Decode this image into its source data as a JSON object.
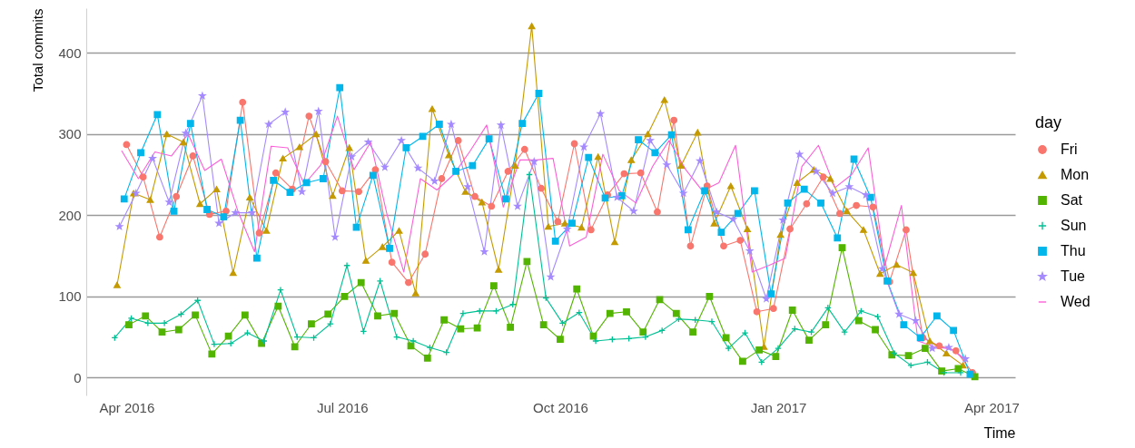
{
  "chart_data": {
    "type": "line",
    "xlabel": "Time",
    "ylabel": "Total commits",
    "legend_title": "day",
    "legend": "right",
    "grid": "y",
    "line_style": "solid",
    "xlim": [
      "2016-03-15",
      "2017-04-11"
    ],
    "ylim": [
      -22,
      455
    ],
    "xticks": [
      {
        "value": "2016-04-01",
        "label": "Apr 2016"
      },
      {
        "value": "2016-07-01",
        "label": "Jul 2016"
      },
      {
        "value": "2016-10-01",
        "label": "Oct 2016"
      },
      {
        "value": "2017-01-01",
        "label": "Jan 2017"
      },
      {
        "value": "2017-04-01",
        "label": "Apr 2017"
      }
    ],
    "yticks": [
      0,
      100,
      200,
      300,
      400
    ],
    "series": [
      {
        "name": "Fri",
        "color": "#f8766d",
        "marker": "circle",
        "x": [
          "2016-04-01",
          "2016-04-08",
          "2016-04-15",
          "2016-04-22",
          "2016-04-29",
          "2016-05-06",
          "2016-05-13",
          "2016-05-20",
          "2016-05-27",
          "2016-06-03",
          "2016-06-10",
          "2016-06-17",
          "2016-06-24",
          "2016-07-01",
          "2016-07-08",
          "2016-07-15",
          "2016-07-22",
          "2016-07-29",
          "2016-08-05",
          "2016-08-12",
          "2016-08-19",
          "2016-08-26",
          "2016-09-02",
          "2016-09-09",
          "2016-09-16",
          "2016-09-23",
          "2016-09-30",
          "2016-10-07",
          "2016-10-14",
          "2016-10-21",
          "2016-10-28",
          "2016-11-04",
          "2016-11-11",
          "2016-11-18",
          "2016-11-25",
          "2016-12-02",
          "2016-12-09",
          "2016-12-16",
          "2016-12-23",
          "2016-12-30",
          "2017-01-06",
          "2017-01-13",
          "2017-01-20",
          "2017-01-27",
          "2017-02-03",
          "2017-02-10",
          "2017-02-17",
          "2017-02-24",
          "2017-03-03",
          "2017-03-10",
          "2017-03-17",
          "2017-03-24"
        ],
        "values": [
          287,
          247,
          173,
          223,
          273,
          201,
          205,
          339,
          178,
          252,
          232,
          322,
          266,
          230,
          229,
          256,
          142,
          117,
          152,
          245,
          292,
          223,
          211,
          254,
          281,
          233,
          192,
          288,
          182,
          225,
          251,
          252,
          204,
          317,
          162,
          236,
          162,
          169,
          81,
          85,
          183,
          214,
          247,
          202,
          212,
          210,
          118,
          182,
          49,
          39,
          33,
          6
        ]
      },
      {
        "name": "Mon",
        "color": "#c49a00",
        "marker": "triangle",
        "x": [
          "2016-03-28",
          "2016-04-04",
          "2016-04-11",
          "2016-04-18",
          "2016-04-25",
          "2016-05-02",
          "2016-05-09",
          "2016-05-16",
          "2016-05-23",
          "2016-05-30",
          "2016-06-06",
          "2016-06-13",
          "2016-06-20",
          "2016-06-27",
          "2016-07-04",
          "2016-07-11",
          "2016-07-18",
          "2016-07-25",
          "2016-08-01",
          "2016-08-08",
          "2016-08-15",
          "2016-08-22",
          "2016-08-29",
          "2016-09-05",
          "2016-09-12",
          "2016-09-19",
          "2016-09-26",
          "2016-10-03",
          "2016-10-10",
          "2016-10-17",
          "2016-10-24",
          "2016-10-31",
          "2016-11-07",
          "2016-11-14",
          "2016-11-21",
          "2016-11-28",
          "2016-12-05",
          "2016-12-12",
          "2016-12-19",
          "2016-12-26",
          "2017-01-02",
          "2017-01-09",
          "2017-01-16",
          "2017-01-23",
          "2017-01-30",
          "2017-02-06",
          "2017-02-13",
          "2017-02-20",
          "2017-02-27",
          "2017-03-06",
          "2017-03-13",
          "2017-03-20"
        ],
        "values": [
          114,
          227,
          219,
          300,
          290,
          214,
          232,
          129,
          222,
          181,
          270,
          284,
          300,
          224,
          283,
          144,
          161,
          181,
          104,
          331,
          274,
          229,
          216,
          133,
          261,
          433,
          186,
          190,
          185,
          272,
          167,
          268,
          300,
          342,
          261,
          302,
          190,
          236,
          183,
          38,
          176,
          240,
          256,
          245,
          205,
          182,
          128,
          139,
          129,
          45,
          30,
          15
        ]
      },
      {
        "name": "Sat",
        "color": "#53b400",
        "marker": "square",
        "x": [
          "2016-04-02",
          "2016-04-09",
          "2016-04-16",
          "2016-04-23",
          "2016-04-30",
          "2016-05-07",
          "2016-05-14",
          "2016-05-21",
          "2016-05-28",
          "2016-06-04",
          "2016-06-11",
          "2016-06-18",
          "2016-06-25",
          "2016-07-02",
          "2016-07-09",
          "2016-07-16",
          "2016-07-23",
          "2016-07-30",
          "2016-08-06",
          "2016-08-13",
          "2016-08-20",
          "2016-08-27",
          "2016-09-03",
          "2016-09-10",
          "2016-09-17",
          "2016-09-24",
          "2016-10-01",
          "2016-10-08",
          "2016-10-15",
          "2016-10-22",
          "2016-10-29",
          "2016-11-05",
          "2016-11-12",
          "2016-11-19",
          "2016-11-26",
          "2016-12-03",
          "2016-12-10",
          "2016-12-17",
          "2016-12-24",
          "2016-12-31",
          "2017-01-07",
          "2017-01-14",
          "2017-01-21",
          "2017-01-28",
          "2017-02-04",
          "2017-02-11",
          "2017-02-18",
          "2017-02-25",
          "2017-03-04",
          "2017-03-11",
          "2017-03-18",
          "2017-03-25"
        ],
        "values": [
          65,
          76,
          56,
          59,
          77,
          29,
          51,
          77,
          42,
          88,
          38,
          66,
          78,
          100,
          117,
          76,
          79,
          39,
          24,
          71,
          60,
          61,
          113,
          62,
          143,
          65,
          47,
          109,
          51,
          79,
          81,
          56,
          96,
          79,
          56,
          100,
          49,
          20,
          34,
          26,
          83,
          46,
          65,
          160,
          70,
          59,
          28,
          27,
          36,
          8,
          11,
          1
        ]
      },
      {
        "name": "Sun",
        "color": "#00c094",
        "marker": "cross",
        "x": [
          "2016-03-27",
          "2016-04-03",
          "2016-04-10",
          "2016-04-17",
          "2016-04-24",
          "2016-05-01",
          "2016-05-08",
          "2016-05-15",
          "2016-05-22",
          "2016-05-29",
          "2016-06-05",
          "2016-06-12",
          "2016-06-19",
          "2016-06-26",
          "2016-07-03",
          "2016-07-10",
          "2016-07-17",
          "2016-07-24",
          "2016-07-31",
          "2016-08-07",
          "2016-08-14",
          "2016-08-21",
          "2016-08-28",
          "2016-09-04",
          "2016-09-11",
          "2016-09-18",
          "2016-09-25",
          "2016-10-02",
          "2016-10-09",
          "2016-10-16",
          "2016-10-23",
          "2016-10-30",
          "2016-11-06",
          "2016-11-13",
          "2016-11-20",
          "2016-11-27",
          "2016-12-04",
          "2016-12-11",
          "2016-12-18",
          "2016-12-25",
          "2017-01-01",
          "2017-01-08",
          "2017-01-15",
          "2017-01-22",
          "2017-01-29",
          "2017-02-05",
          "2017-02-12",
          "2017-02-19",
          "2017-02-26",
          "2017-03-05",
          "2017-03-12",
          "2017-03-19"
        ],
        "values": [
          49,
          73,
          67,
          67,
          78,
          95,
          41,
          42,
          55,
          45,
          108,
          50,
          49,
          66,
          138,
          57,
          119,
          50,
          45,
          37,
          31,
          79,
          82,
          82,
          90,
          250,
          98,
          67,
          80,
          45,
          47,
          48,
          50,
          58,
          72,
          71,
          69,
          36,
          55,
          19,
          36,
          60,
          56,
          86,
          56,
          82,
          75,
          30,
          15,
          19,
          6,
          6
        ]
      },
      {
        "name": "Thu",
        "color": "#00b6eb",
        "marker": "square",
        "x": [
          "2016-03-31",
          "2016-04-07",
          "2016-04-14",
          "2016-04-21",
          "2016-04-28",
          "2016-05-05",
          "2016-05-12",
          "2016-05-19",
          "2016-05-26",
          "2016-06-02",
          "2016-06-09",
          "2016-06-16",
          "2016-06-23",
          "2016-06-30",
          "2016-07-07",
          "2016-07-14",
          "2016-07-21",
          "2016-07-28",
          "2016-08-04",
          "2016-08-11",
          "2016-08-18",
          "2016-08-25",
          "2016-09-01",
          "2016-09-08",
          "2016-09-15",
          "2016-09-22",
          "2016-09-29",
          "2016-10-06",
          "2016-10-13",
          "2016-10-20",
          "2016-10-27",
          "2016-11-03",
          "2016-11-10",
          "2016-11-17",
          "2016-11-24",
          "2016-12-01",
          "2016-12-08",
          "2016-12-15",
          "2016-12-22",
          "2016-12-29",
          "2017-01-05",
          "2017-01-12",
          "2017-01-19",
          "2017-01-26",
          "2017-02-02",
          "2017-02-09",
          "2017-02-16",
          "2017-02-23",
          "2017-03-02",
          "2017-03-09",
          "2017-03-16",
          "2017-03-23"
        ],
        "values": [
          220,
          277,
          324,
          205,
          313,
          207,
          198,
          317,
          147,
          243,
          228,
          240,
          245,
          357,
          185,
          249,
          159,
          283,
          297,
          312,
          254,
          261,
          294,
          220,
          313,
          350,
          168,
          190,
          271,
          221,
          224,
          293,
          277,
          299,
          182,
          230,
          179,
          202,
          230,
          103,
          215,
          232,
          215,
          172,
          269,
          222,
          119,
          65,
          49,
          76,
          58,
          4
        ]
      },
      {
        "name": "Tue",
        "color": "#a58aff",
        "marker": "star",
        "x": [
          "2016-03-29",
          "2016-04-05",
          "2016-04-12",
          "2016-04-19",
          "2016-04-26",
          "2016-05-03",
          "2016-05-10",
          "2016-05-17",
          "2016-05-24",
          "2016-05-31",
          "2016-06-07",
          "2016-06-14",
          "2016-06-21",
          "2016-06-28",
          "2016-07-05",
          "2016-07-12",
          "2016-07-19",
          "2016-07-26",
          "2016-08-02",
          "2016-08-09",
          "2016-08-16",
          "2016-08-23",
          "2016-08-30",
          "2016-09-06",
          "2016-09-13",
          "2016-09-20",
          "2016-09-27",
          "2016-10-04",
          "2016-10-11",
          "2016-10-18",
          "2016-10-25",
          "2016-11-01",
          "2016-11-08",
          "2016-11-15",
          "2016-11-22",
          "2016-11-29",
          "2016-12-06",
          "2016-12-13",
          "2016-12-20",
          "2016-12-27",
          "2017-01-03",
          "2017-01-10",
          "2017-01-17",
          "2017-01-24",
          "2017-01-31",
          "2017-02-07",
          "2017-02-14",
          "2017-02-21",
          "2017-02-28",
          "2017-03-07",
          "2017-03-14",
          "2017-03-21"
        ],
        "values": [
          186,
          227,
          270,
          216,
          301,
          347,
          190,
          203,
          203,
          312,
          327,
          229,
          328,
          173,
          272,
          290,
          259,
          292,
          258,
          242,
          312,
          235,
          155,
          311,
          211,
          266,
          124,
          183,
          284,
          325,
          222,
          205,
          292,
          262,
          227,
          267,
          204,
          195,
          156,
          97,
          194,
          275,
          254,
          227,
          235,
          225,
          134,
          78,
          70,
          36,
          37,
          23
        ]
      },
      {
        "name": "Wed",
        "color": "#fb61d7",
        "marker": "none",
        "x": [
          "2016-03-30",
          "2016-04-06",
          "2016-04-13",
          "2016-04-20",
          "2016-04-27",
          "2016-05-04",
          "2016-05-11",
          "2016-05-18",
          "2016-05-25",
          "2016-06-01",
          "2016-06-08",
          "2016-06-15",
          "2016-06-22",
          "2016-06-29",
          "2016-07-06",
          "2016-07-13",
          "2016-07-20",
          "2016-07-27",
          "2016-08-03",
          "2016-08-10",
          "2016-08-17",
          "2016-08-24",
          "2016-08-31",
          "2016-09-07",
          "2016-09-14",
          "2016-09-21",
          "2016-09-28",
          "2016-10-05",
          "2016-10-12",
          "2016-10-19",
          "2016-10-26",
          "2016-11-02",
          "2016-11-09",
          "2016-11-16",
          "2016-11-23",
          "2016-11-30",
          "2016-12-07",
          "2016-12-14",
          "2016-12-21",
          "2016-12-28",
          "2017-01-04",
          "2017-01-11",
          "2017-01-18",
          "2017-01-25",
          "2017-02-01",
          "2017-02-08",
          "2017-02-15",
          "2017-02-22",
          "2017-03-01",
          "2017-03-08",
          "2017-03-15",
          "2017-03-22"
        ],
        "values": [
          279,
          245,
          278,
          273,
          300,
          255,
          269,
          205,
          155,
          285,
          283,
          238,
          262,
          322,
          256,
          290,
          200,
          130,
          245,
          231,
          250,
          279,
          311,
          210,
          268,
          268,
          270,
          162,
          173,
          275,
          230,
          215,
          260,
          292,
          256,
          230,
          240,
          286,
          130,
          138,
          147,
          260,
          286,
          234,
          250,
          283,
          138,
          212,
          45,
          38,
          35,
          20
        ]
      }
    ]
  }
}
